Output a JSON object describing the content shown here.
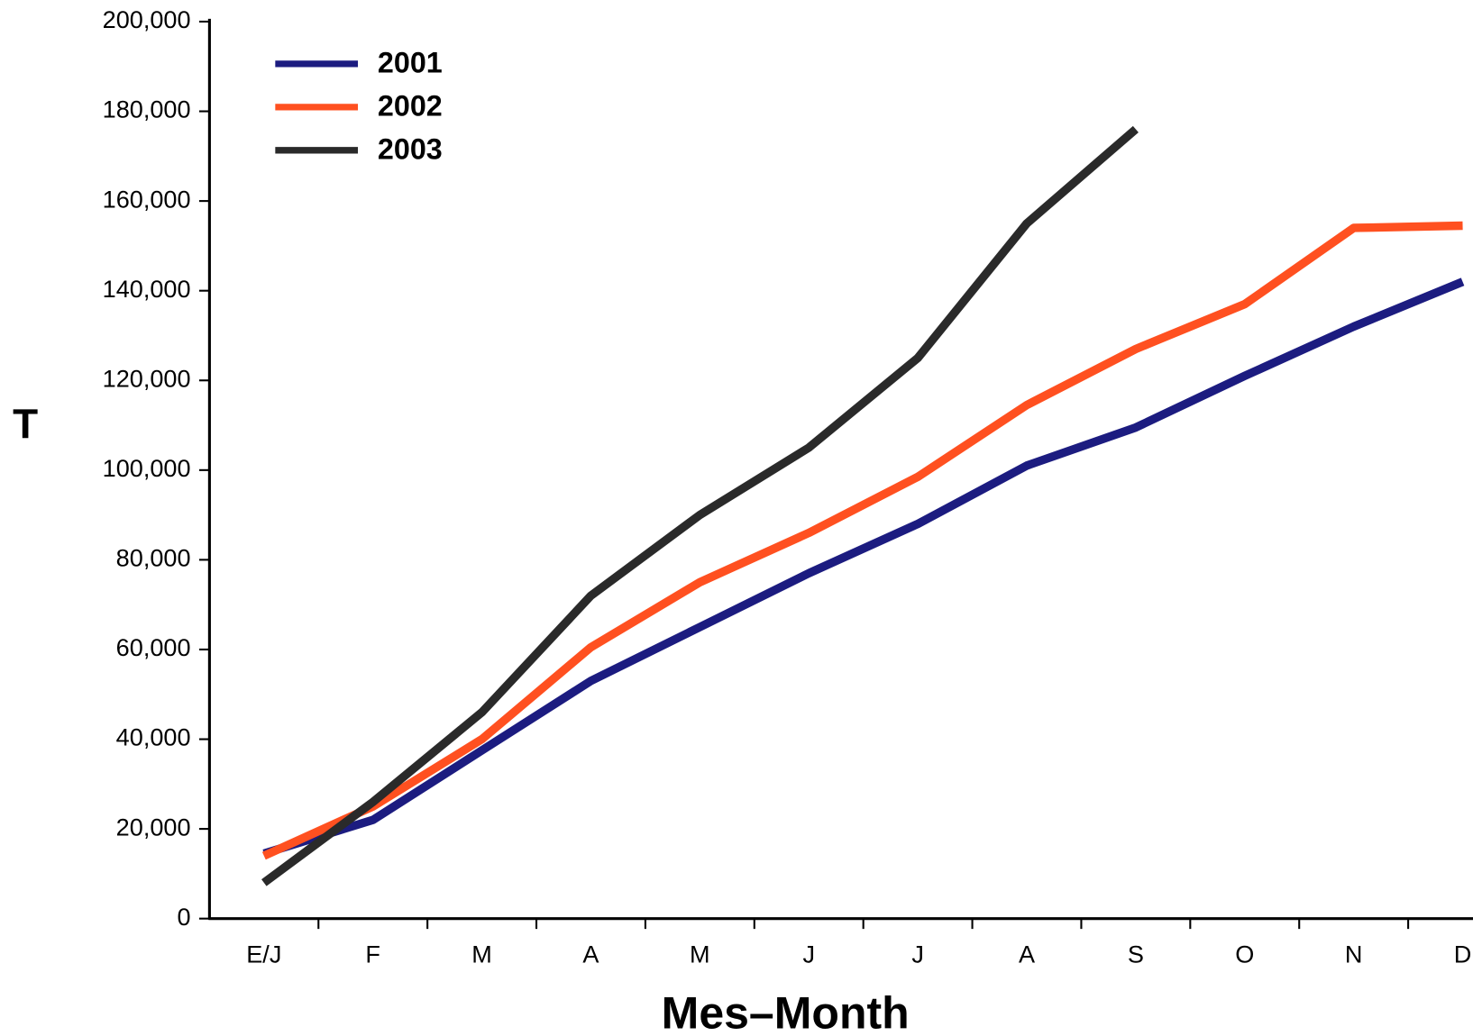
{
  "chart_data": {
    "type": "line",
    "x_label": "Mes–Month",
    "y_label": "T",
    "categories": [
      "E/J",
      "F",
      "M",
      "A",
      "M",
      "J",
      "J",
      "A",
      "S",
      "O",
      "N",
      "D"
    ],
    "series": [
      {
        "name": "2001",
        "color": "#1c1c80",
        "values": [
          14500,
          22000,
          37500,
          53000,
          65000,
          77000,
          88000,
          101000,
          109500,
          121000,
          132000,
          142000
        ]
      },
      {
        "name": "2002",
        "color": "#ff5020",
        "values": [
          14000,
          25000,
          40000,
          60500,
          75000,
          86000,
          98500,
          114500,
          127000,
          137000,
          154000,
          154500
        ]
      },
      {
        "name": "2003",
        "color": "#2a2a2a",
        "values": [
          8000,
          26000,
          46000,
          72000,
          90000,
          105000,
          125000,
          155000,
          176000,
          null,
          null,
          null
        ]
      }
    ],
    "ylim": [
      0,
      200000
    ],
    "yticks": [
      0,
      {
        "value": 20000,
        "label": "20,000"
      },
      {
        "value": 40000,
        "label": "40,000"
      },
      {
        "value": 60000,
        "label": "60,000"
      },
      {
        "value": 80000,
        "label": "80,000"
      },
      {
        "value": 100000,
        "label": "100,000"
      },
      {
        "value": 120000,
        "label": "120,000"
      },
      {
        "value": 140000,
        "label": "140,000"
      },
      {
        "value": 160000,
        "label": "160,000"
      },
      {
        "value": 180000,
        "label": "180,000"
      },
      {
        "value": 200000,
        "label": "200,000"
      }
    ],
    "legend": "upper left",
    "grid": false
  }
}
